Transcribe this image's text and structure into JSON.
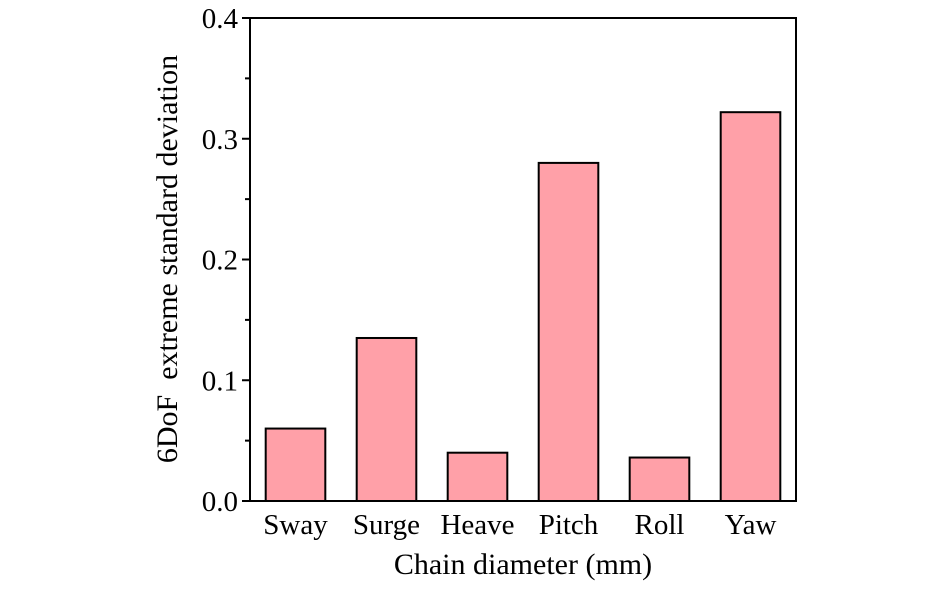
{
  "chart_data": {
    "type": "bar",
    "title": "",
    "xlabel": "Chain diameter (mm)",
    "ylabel": "6DoF  extreme standard deviation",
    "categories": [
      "Sway",
      "Surge",
      "Heave",
      "Pitch",
      "Roll",
      "Yaw"
    ],
    "values": [
      0.06,
      0.135,
      0.04,
      0.28,
      0.036,
      0.322
    ],
    "ylim": [
      0.0,
      0.4
    ],
    "yticks": [
      "0.0",
      "0.1",
      "0.2",
      "0.3",
      "0.4"
    ],
    "grid": false,
    "legend": "none",
    "colors": {
      "bar_fill": "#ffa0a8",
      "bar_stroke": "#000000",
      "axis": "#000000"
    }
  }
}
